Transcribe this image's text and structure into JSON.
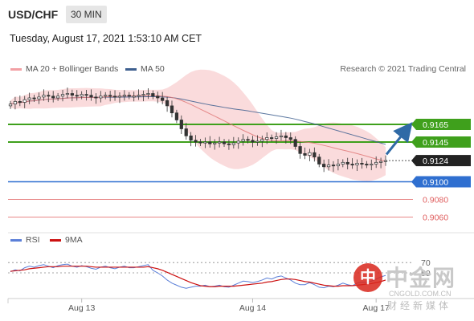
{
  "header": {
    "symbol": "USD/CHF",
    "timeframe": "30 MIN",
    "datetime": "Tuesday, August 17, 2021 1:53:10 AM CET"
  },
  "legend": {
    "bb_label": "MA 20 + Bollinger Bands",
    "ma50_label": "MA 50",
    "research": "Research © 2021 Trading Central",
    "rsi_label": "RSI",
    "rsi_ma_label": "9MA"
  },
  "colors": {
    "bollinger": "#f2a0a4",
    "ma20": "#e07a7a",
    "ma50": "#3e5f8f",
    "resistance": "#3fa01c",
    "support": "#2f6fd0",
    "support_minor": "#e06060",
    "current": "#222222",
    "arrow": "#2f6aa6",
    "rsi": "#5b7fd8",
    "rsi_ma": "#cc1111",
    "candle": "#333333"
  },
  "watermark": {
    "logo_char": "中",
    "cn": "中金网",
    "en": "CNGOLD.COM.CN",
    "sub": "财经新媒体"
  },
  "chart_data": {
    "type": "candlestick",
    "y_range": [
      0.9045,
      0.9215
    ],
    "close_prices": [
      0.9188,
      0.9191,
      0.919,
      0.9193,
      0.9195,
      0.9194,
      0.9196,
      0.9198,
      0.9197,
      0.9195,
      0.9197,
      0.9199,
      0.92,
      0.9198,
      0.9197,
      0.9199,
      0.9198,
      0.9196,
      0.9195,
      0.9197,
      0.9198,
      0.9197,
      0.9196,
      0.9197,
      0.9198,
      0.9197,
      0.9197,
      0.9198,
      0.9199,
      0.92,
      0.9197,
      0.9195,
      0.9192,
      0.9186,
      0.9178,
      0.917,
      0.916,
      0.9152,
      0.9147,
      0.9145,
      0.9144,
      0.9145,
      0.9143,
      0.9144,
      0.9145,
      0.9143,
      0.9142,
      0.9144,
      0.9146,
      0.9148,
      0.9147,
      0.9145,
      0.9146,
      0.9148,
      0.915,
      0.9149,
      0.9151,
      0.9152,
      0.915,
      0.9148,
      0.914,
      0.9132,
      0.913,
      0.9133,
      0.9128,
      0.912,
      0.9117,
      0.9119,
      0.9118,
      0.912,
      0.9122,
      0.912,
      0.9119,
      0.9121,
      0.912,
      0.9119,
      0.912,
      0.9122,
      0.9123,
      0.9124
    ],
    "horizontal_levels": [
      {
        "value": 0.9165,
        "label": "0.9165",
        "role": "resistance"
      },
      {
        "value": 0.9145,
        "label": "0.9145",
        "role": "resistance"
      },
      {
        "value": 0.9124,
        "label": "0.9124",
        "role": "current"
      },
      {
        "value": 0.91,
        "label": "0.9100",
        "role": "support"
      },
      {
        "value": 0.908,
        "label": "0.9080",
        "role": "support-minor"
      },
      {
        "value": 0.906,
        "label": "0.9060",
        "role": "support-minor"
      }
    ],
    "x_labels": [
      "Aug 13",
      "Aug 14",
      "Aug 17"
    ],
    "x_label_index": [
      15,
      51,
      77
    ],
    "rsi_panel": {
      "y_range": [
        0,
        100
      ],
      "levels": [
        {
          "value": 70,
          "label": "70"
        },
        {
          "value": 50,
          "label": "50"
        }
      ],
      "rsi": [
        52,
        56,
        54,
        60,
        63,
        61,
        64,
        66,
        63,
        60,
        64,
        66,
        67,
        63,
        61,
        64,
        62,
        59,
        57,
        61,
        63,
        60,
        58,
        61,
        63,
        60,
        60,
        62,
        64,
        66,
        55,
        50,
        44,
        36,
        30,
        26,
        22,
        20,
        22,
        24,
        24,
        26,
        23,
        24,
        26,
        23,
        22,
        26,
        30,
        34,
        33,
        31,
        33,
        36,
        40,
        38,
        42,
        44,
        40,
        36,
        30,
        27,
        27,
        31,
        27,
        22,
        21,
        24,
        23,
        26,
        30,
        27,
        25,
        30,
        32,
        31,
        34,
        38,
        42,
        45
      ],
      "rsi_ma": [
        53,
        54,
        55,
        56,
        58,
        59,
        60,
        61,
        62,
        62,
        62,
        63,
        63,
        63,
        63,
        63,
        63,
        62,
        61,
        61,
        61,
        61,
        61,
        61,
        61,
        61,
        61,
        61,
        61,
        62,
        60,
        58,
        55,
        51,
        47,
        43,
        39,
        35,
        31,
        28,
        25,
        24,
        23,
        23,
        24,
        24,
        24,
        24,
        25,
        26,
        27,
        28,
        29,
        30,
        32,
        33,
        35,
        37,
        38,
        38,
        37,
        35,
        33,
        32,
        30,
        28,
        26,
        25,
        24,
        24,
        25,
        25,
        25,
        26,
        27,
        28,
        29,
        31,
        33,
        36
      ]
    },
    "projection_arrow": {
      "from_value": 0.9131,
      "to_value": 0.9165
    }
  }
}
